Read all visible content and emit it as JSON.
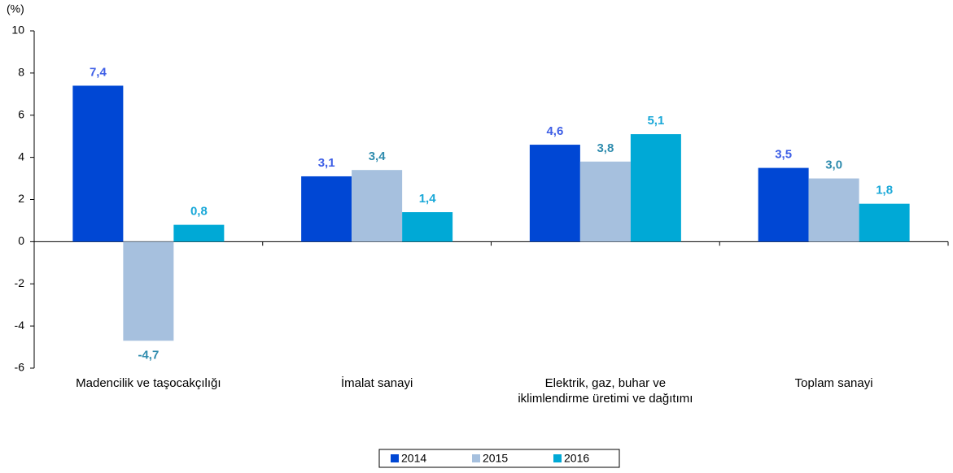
{
  "chart_data": {
    "type": "bar",
    "y_unit_label": "(%)",
    "categories": [
      "Madencilik ve taşocakçılığı",
      "İmalat sanayi",
      "Elektrik, gaz, buhar ve\niklimlendirme üretimi ve dağıtımı",
      "Toplam sanayi"
    ],
    "series": [
      {
        "name": "2014",
        "color": "#0047d4",
        "values": [
          7.4,
          3.1,
          4.6,
          3.5
        ],
        "value_labels": [
          "7,4",
          "3,1",
          "4,6",
          "3,5"
        ]
      },
      {
        "name": "2015",
        "color": "#a6c0de",
        "values": [
          -4.7,
          3.4,
          3.8,
          3.0
        ],
        "value_labels": [
          "-4,7",
          "3,4",
          "3,8",
          "3,0"
        ]
      },
      {
        "name": "2016",
        "color": "#00a9d6",
        "values": [
          0.8,
          1.4,
          5.1,
          1.8
        ],
        "value_labels": [
          "0,8",
          "1,4",
          "5,1",
          "1,8"
        ]
      }
    ],
    "ylim": [
      -6,
      10
    ],
    "yticks": [
      -6,
      -4,
      -2,
      0,
      2,
      4,
      6,
      8,
      10
    ],
    "grid": false,
    "legend": "bottom"
  }
}
